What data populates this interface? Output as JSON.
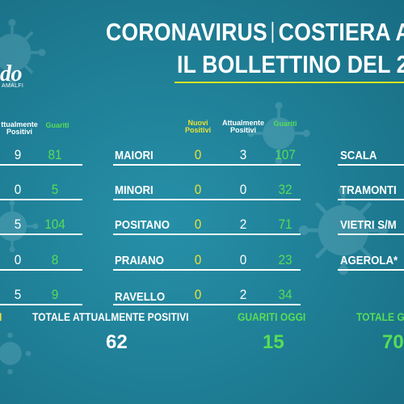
{
  "title": {
    "line1_left": "CORONAVIRUS",
    "line1_right": "COSTIERA A",
    "line2": "IL BOLLETTINO DEL 2"
  },
  "logo": {
    "text": "do",
    "subtitle": "AMALFI"
  },
  "left_headers": {
    "positivi": "ttualmente\nPositivi",
    "guariti": "Guariti"
  },
  "center_headers": {
    "nuovi": "Nuovi\nPositivi",
    "attuali": "Attualmente\nPositivi",
    "guariti": "Guariti"
  },
  "left_rows": [
    {
      "positivi": "9",
      "guariti": "81"
    },
    {
      "positivi": "0",
      "guariti": "5"
    },
    {
      "positivi": "5",
      "guariti": "104"
    },
    {
      "positivi": "0",
      "guariti": "8"
    },
    {
      "positivi": "5",
      "guariti": "9"
    }
  ],
  "center_rows": [
    {
      "town": "MAIORI",
      "nuovi": "0",
      "attuali": "3",
      "guariti": "107"
    },
    {
      "town": "MINORI",
      "nuovi": "0",
      "attuali": "0",
      "guariti": "32"
    },
    {
      "town": "POSITANO",
      "nuovi": "0",
      "attuali": "2",
      "guariti": "71"
    },
    {
      "town": "PRAIANO",
      "nuovi": "0",
      "attuali": "0",
      "guariti": "23"
    },
    {
      "town": "RAVELLO",
      "nuovi": "0",
      "attuali": "2",
      "guariti": "34"
    }
  ],
  "right_rows": [
    {
      "town": "SCALA"
    },
    {
      "town": "TRAMONTI"
    },
    {
      "town": "VIETRI S/M"
    },
    {
      "town": "AGEROLA*"
    }
  ],
  "totals": {
    "left_label": "I",
    "attualmente_label": "TOTALE ATTUALMENTE POSITIVI",
    "attualmente_value": "62",
    "guariti_oggi_label": "GUARITI OGGI",
    "guariti_oggi_value": "15",
    "totale_guariti_label": "TOTALE G",
    "totale_guariti_value": "70"
  },
  "colors": {
    "background": "#1f7f96",
    "accent_yellow": "#e8e236",
    "accent_green": "#57dd57",
    "title_rule": "#d9e21f"
  },
  "icons": [
    "virus-icon"
  ]
}
